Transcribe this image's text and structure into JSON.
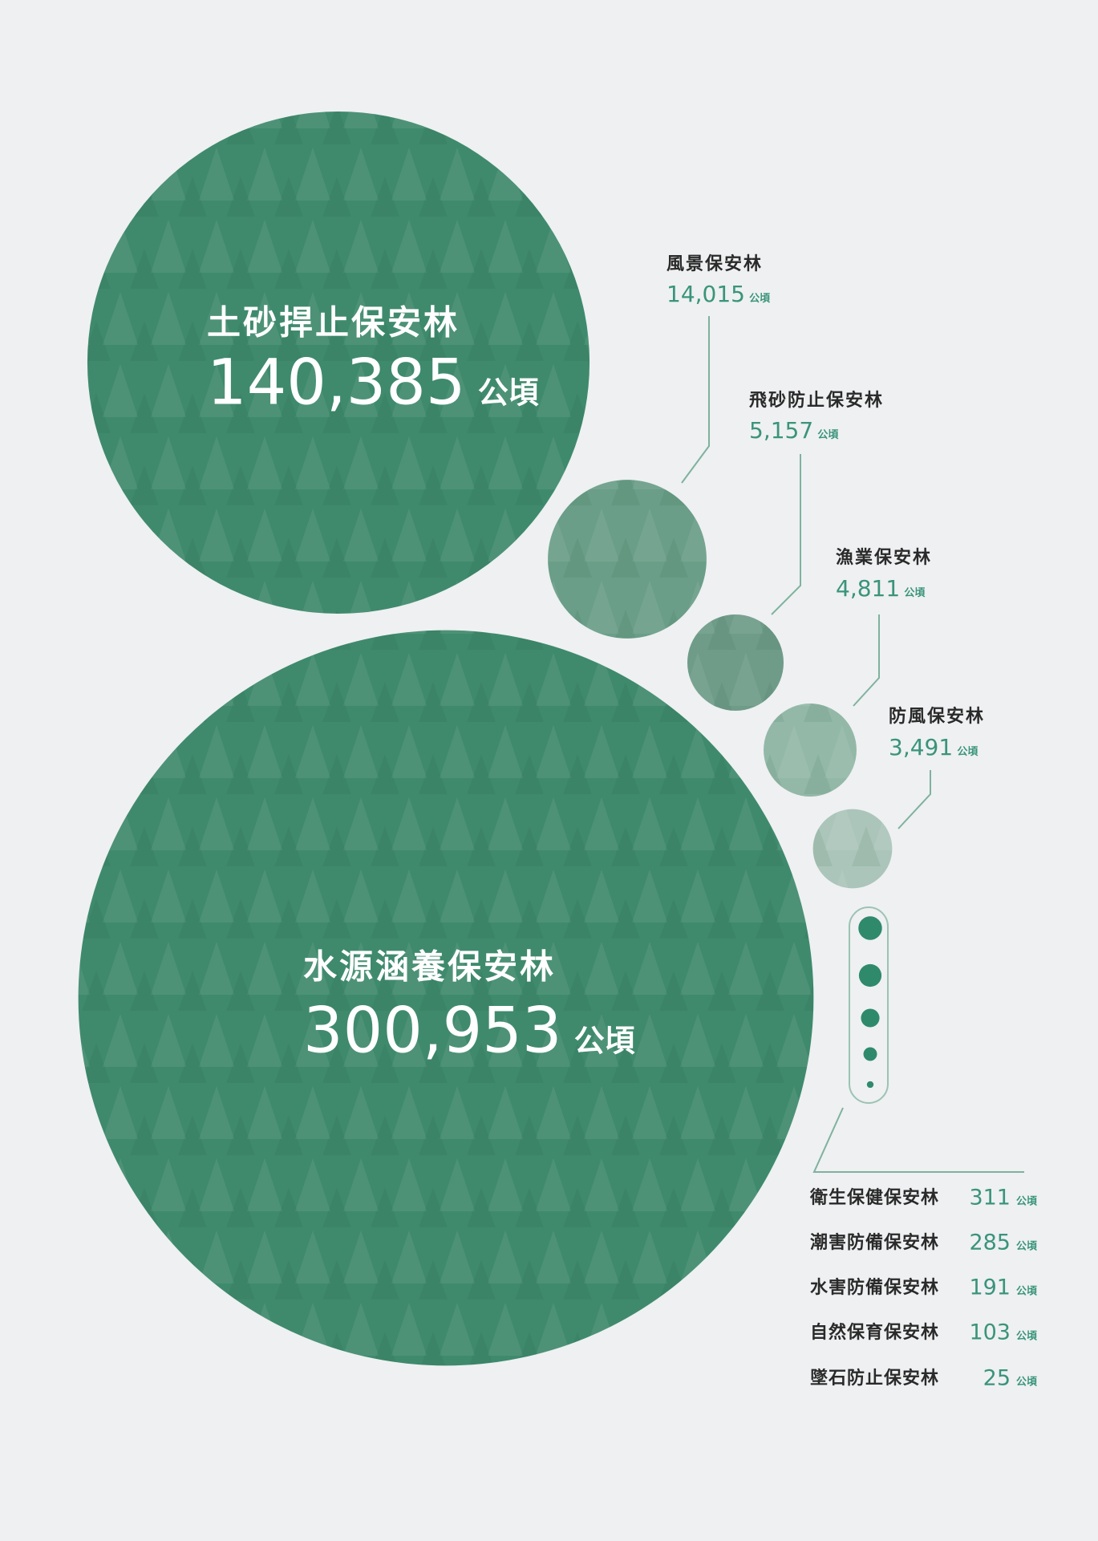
{
  "chart_data": {
    "type": "bubble",
    "categories": [
      "土砂捍止保安林",
      "水源涵養保安林",
      "風景保安林",
      "飛砂防止保安林",
      "漁業保安林",
      "防風保安林",
      "衛生保健保安林",
      "潮害防備保安林",
      "水害防備保安林",
      "自然保育保安林",
      "墜石防止保安林"
    ],
    "values": [
      140385,
      300953,
      14015,
      5157,
      4811,
      3491,
      311,
      285,
      191,
      103,
      25
    ],
    "value_labels": [
      "140,385",
      "300,953",
      "14,015",
      "5,157",
      "4,811",
      "3,491",
      "311",
      "285",
      "191",
      "103",
      "25"
    ],
    "unit": "公頃",
    "colors": [
      "#3f8a6d",
      "#3f8a6d",
      "#6a9e88",
      "#6f9c89",
      "#93b8a8",
      "#abc5ba",
      "#2f8a6c",
      "#2f8a6c",
      "#2f8a6c",
      "#2f8a6c",
      "#2f8a6c"
    ]
  }
}
